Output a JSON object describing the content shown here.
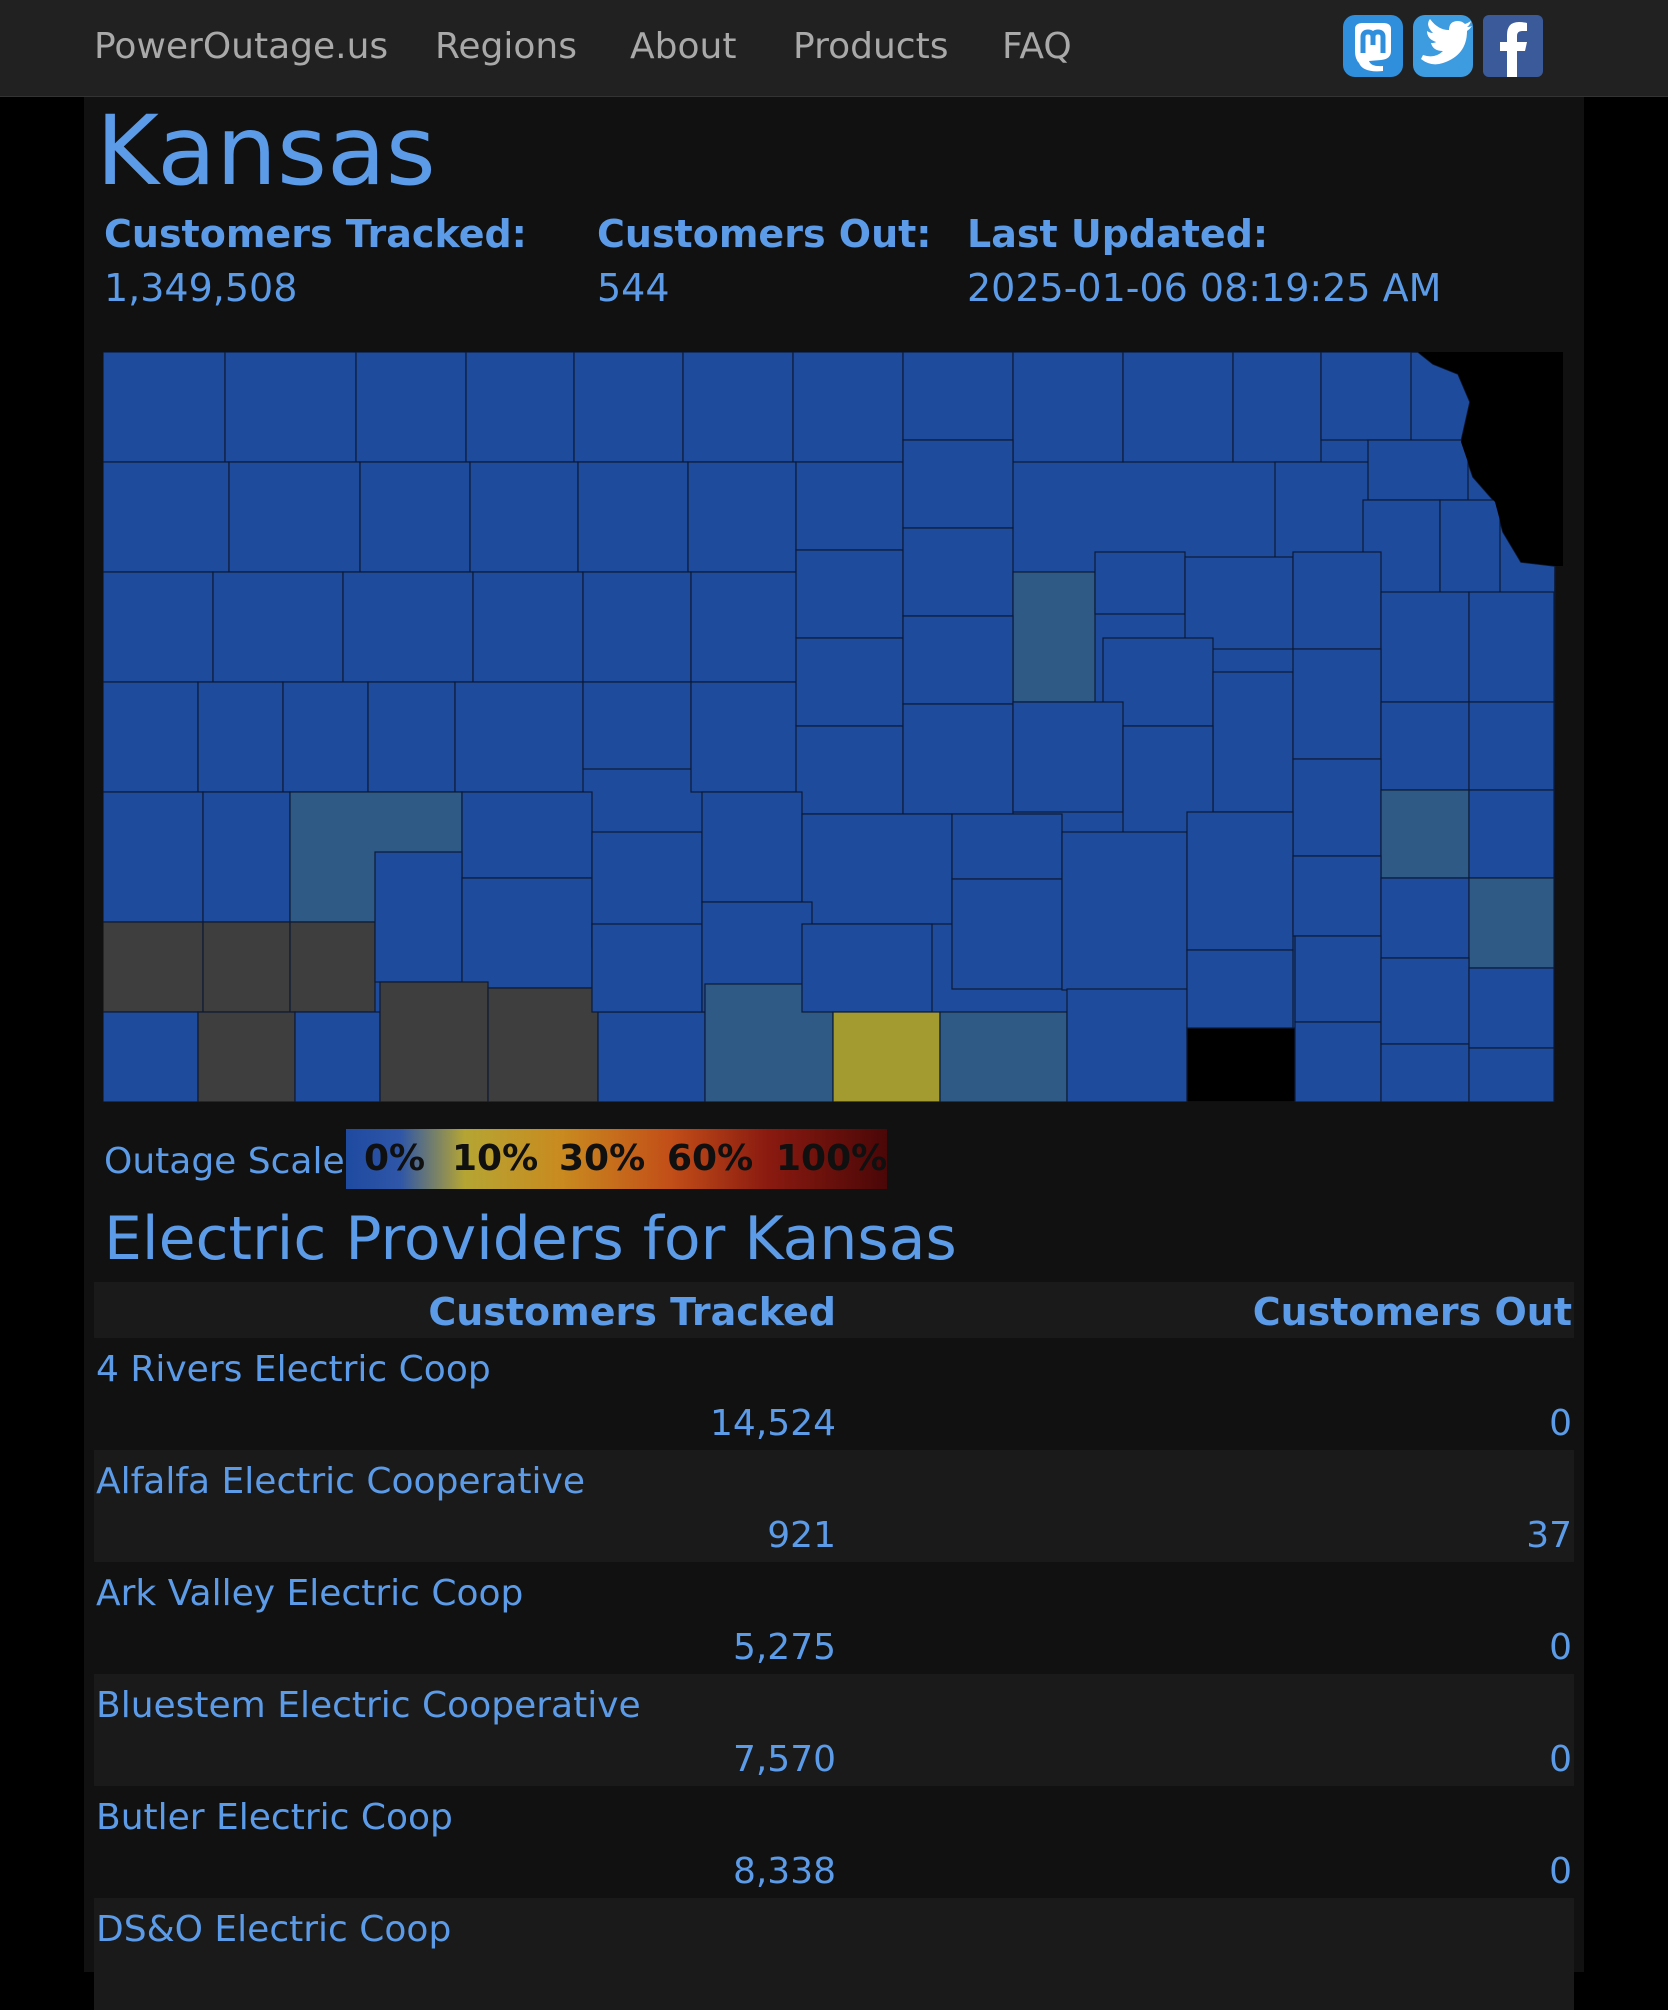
{
  "nav": {
    "brand": "PowerOutage.us",
    "links": [
      "Regions",
      "About",
      "Products",
      "FAQ"
    ],
    "social": [
      {
        "icon": "mastodon-icon",
        "glyph": "m",
        "color": "#2f8fdc"
      },
      {
        "icon": "twitter-icon",
        "glyph": "🐦",
        "color": "#3d9be0"
      },
      {
        "icon": "facebook-icon",
        "glyph": "f",
        "color": "#3b5a9a"
      }
    ]
  },
  "state": {
    "title": "Kansas",
    "customers_tracked_label": "Customers Tracked:",
    "customers_tracked": "1,349,508",
    "customers_out_label": "Customers Out:",
    "customers_out": "544",
    "last_updated_label": "Last Updated:",
    "last_updated": "2025-01-06 08:19:25 AM"
  },
  "map": {
    "colors": {
      "normal": "#1f4b9c",
      "teal": "#2e5a85",
      "gray": "#3e3e3e",
      "yellow": "#a39a30",
      "black": "#000000"
    }
  },
  "scale": {
    "label": "Outage Scale:",
    "ticks": [
      "0%",
      "10%",
      "30%",
      "60%",
      "100%"
    ]
  },
  "providers": {
    "title": "Electric Providers for Kansas",
    "col_tracked": "Customers Tracked",
    "col_out": "Customers Out",
    "rows": [
      {
        "name": "4 Rivers Electric Coop",
        "tracked": "14,524",
        "out": "0"
      },
      {
        "name": "Alfalfa Electric Cooperative",
        "tracked": "921",
        "out": "37"
      },
      {
        "name": "Ark Valley Electric Coop",
        "tracked": "5,275",
        "out": "0"
      },
      {
        "name": "Bluestem Electric Cooperative",
        "tracked": "7,570",
        "out": "0"
      },
      {
        "name": "Butler Electric Coop",
        "tracked": "8,338",
        "out": "0"
      },
      {
        "name": "DS&O Electric Coop",
        "tracked": "",
        "out": ""
      }
    ]
  }
}
